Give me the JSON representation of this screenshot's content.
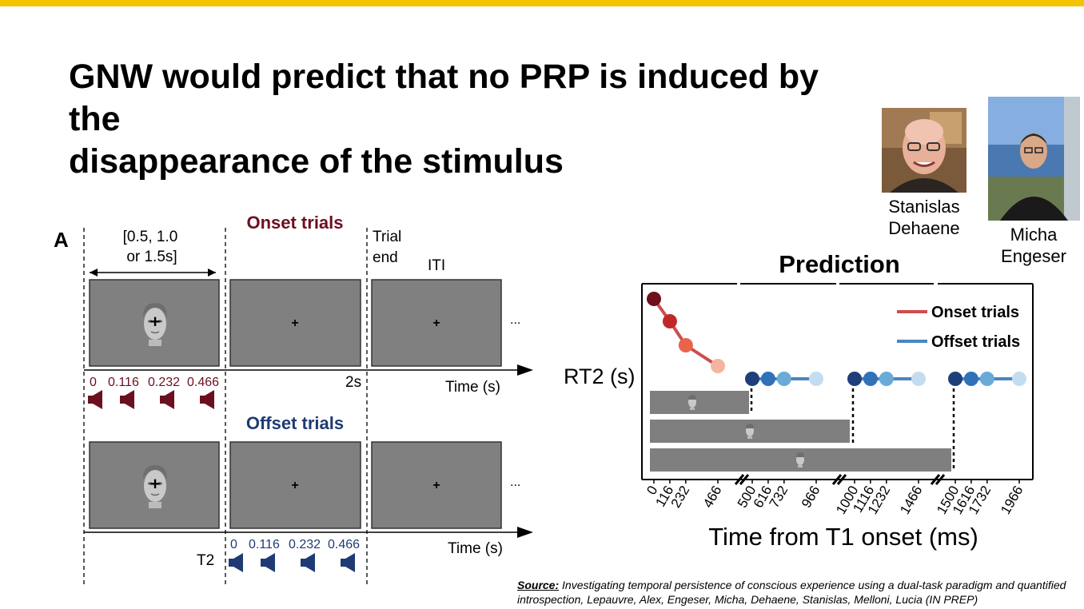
{
  "slide": {
    "title_line1": "GNW would predict that no PRP is induced by the",
    "title_line2": "disappearance of the stimulus",
    "accent_color": "#f5c400"
  },
  "people": [
    {
      "name_line1": "Stanislas",
      "name_line2": "Dehaene"
    },
    {
      "name_line1": "Micha",
      "name_line2": "Engeser"
    }
  ],
  "panel_a": {
    "label": "A",
    "duration_line1": "[0.5, 1.0",
    "duration_line2": "or 1.5s]",
    "onset_title": "Onset trials",
    "offset_title": "Offset trials",
    "trial_end_line1": "Trial",
    "trial_end_line2": "end",
    "iti": "ITI",
    "two_s": "2s",
    "time_label": "Time (s)",
    "t2_label": "T2",
    "ellipsis": "...",
    "soa_ticks": [
      "0",
      "0.116",
      "0.232",
      "0.466"
    ],
    "onset_color": "#6b1020",
    "offset_color": "#1f3b73",
    "screen_color": "#808080"
  },
  "prediction": {
    "title": "Prediction",
    "ylabel": "RT2 (s)",
    "xlabel": "Time from T1 onset (ms)",
    "legend_onset": "Onset trials",
    "legend_offset": "Offset trials",
    "x_ticks": [
      "0",
      "116",
      "232",
      "466",
      "500",
      "616",
      "732",
      "966",
      "1000",
      "1116",
      "1232",
      "1466",
      "1500",
      "1616",
      "1732",
      "1966"
    ]
  },
  "chart_data": {
    "type": "line",
    "title": "Prediction",
    "xlabel": "Time from T1 onset (ms)",
    "ylabel": "RT2 (s)",
    "x_ticks": [
      0,
      116,
      232,
      466,
      500,
      616,
      732,
      966,
      1000,
      1116,
      1232,
      1466,
      1500,
      1616,
      1732,
      1966
    ],
    "series": [
      {
        "name": "Onset trials",
        "x": [
          0,
          116,
          232,
          466
        ],
        "y": [
          1.0,
          0.72,
          0.42,
          0.16
        ]
      },
      {
        "name": "Offset trials",
        "x": [
          500,
          616,
          732,
          966,
          1000,
          1116,
          1232,
          1466,
          1500,
          1616,
          1732,
          1966
        ],
        "y": [
          0,
          0,
          0,
          0,
          0,
          0,
          0,
          0,
          0,
          0,
          0,
          0
        ]
      }
    ],
    "stimulus_durations_ms": [
      500,
      1000,
      1500
    ],
    "legend_position": "top-right"
  },
  "source": {
    "label": "Source:",
    "text": " Investigating temporal persistence of conscious experience using a dual-task paradigm and quantified introspection, Lepauvre, Alex, Engeser, Micha, Dehaene, Stanislas, Melloni, Lucia (IN PREP)"
  }
}
